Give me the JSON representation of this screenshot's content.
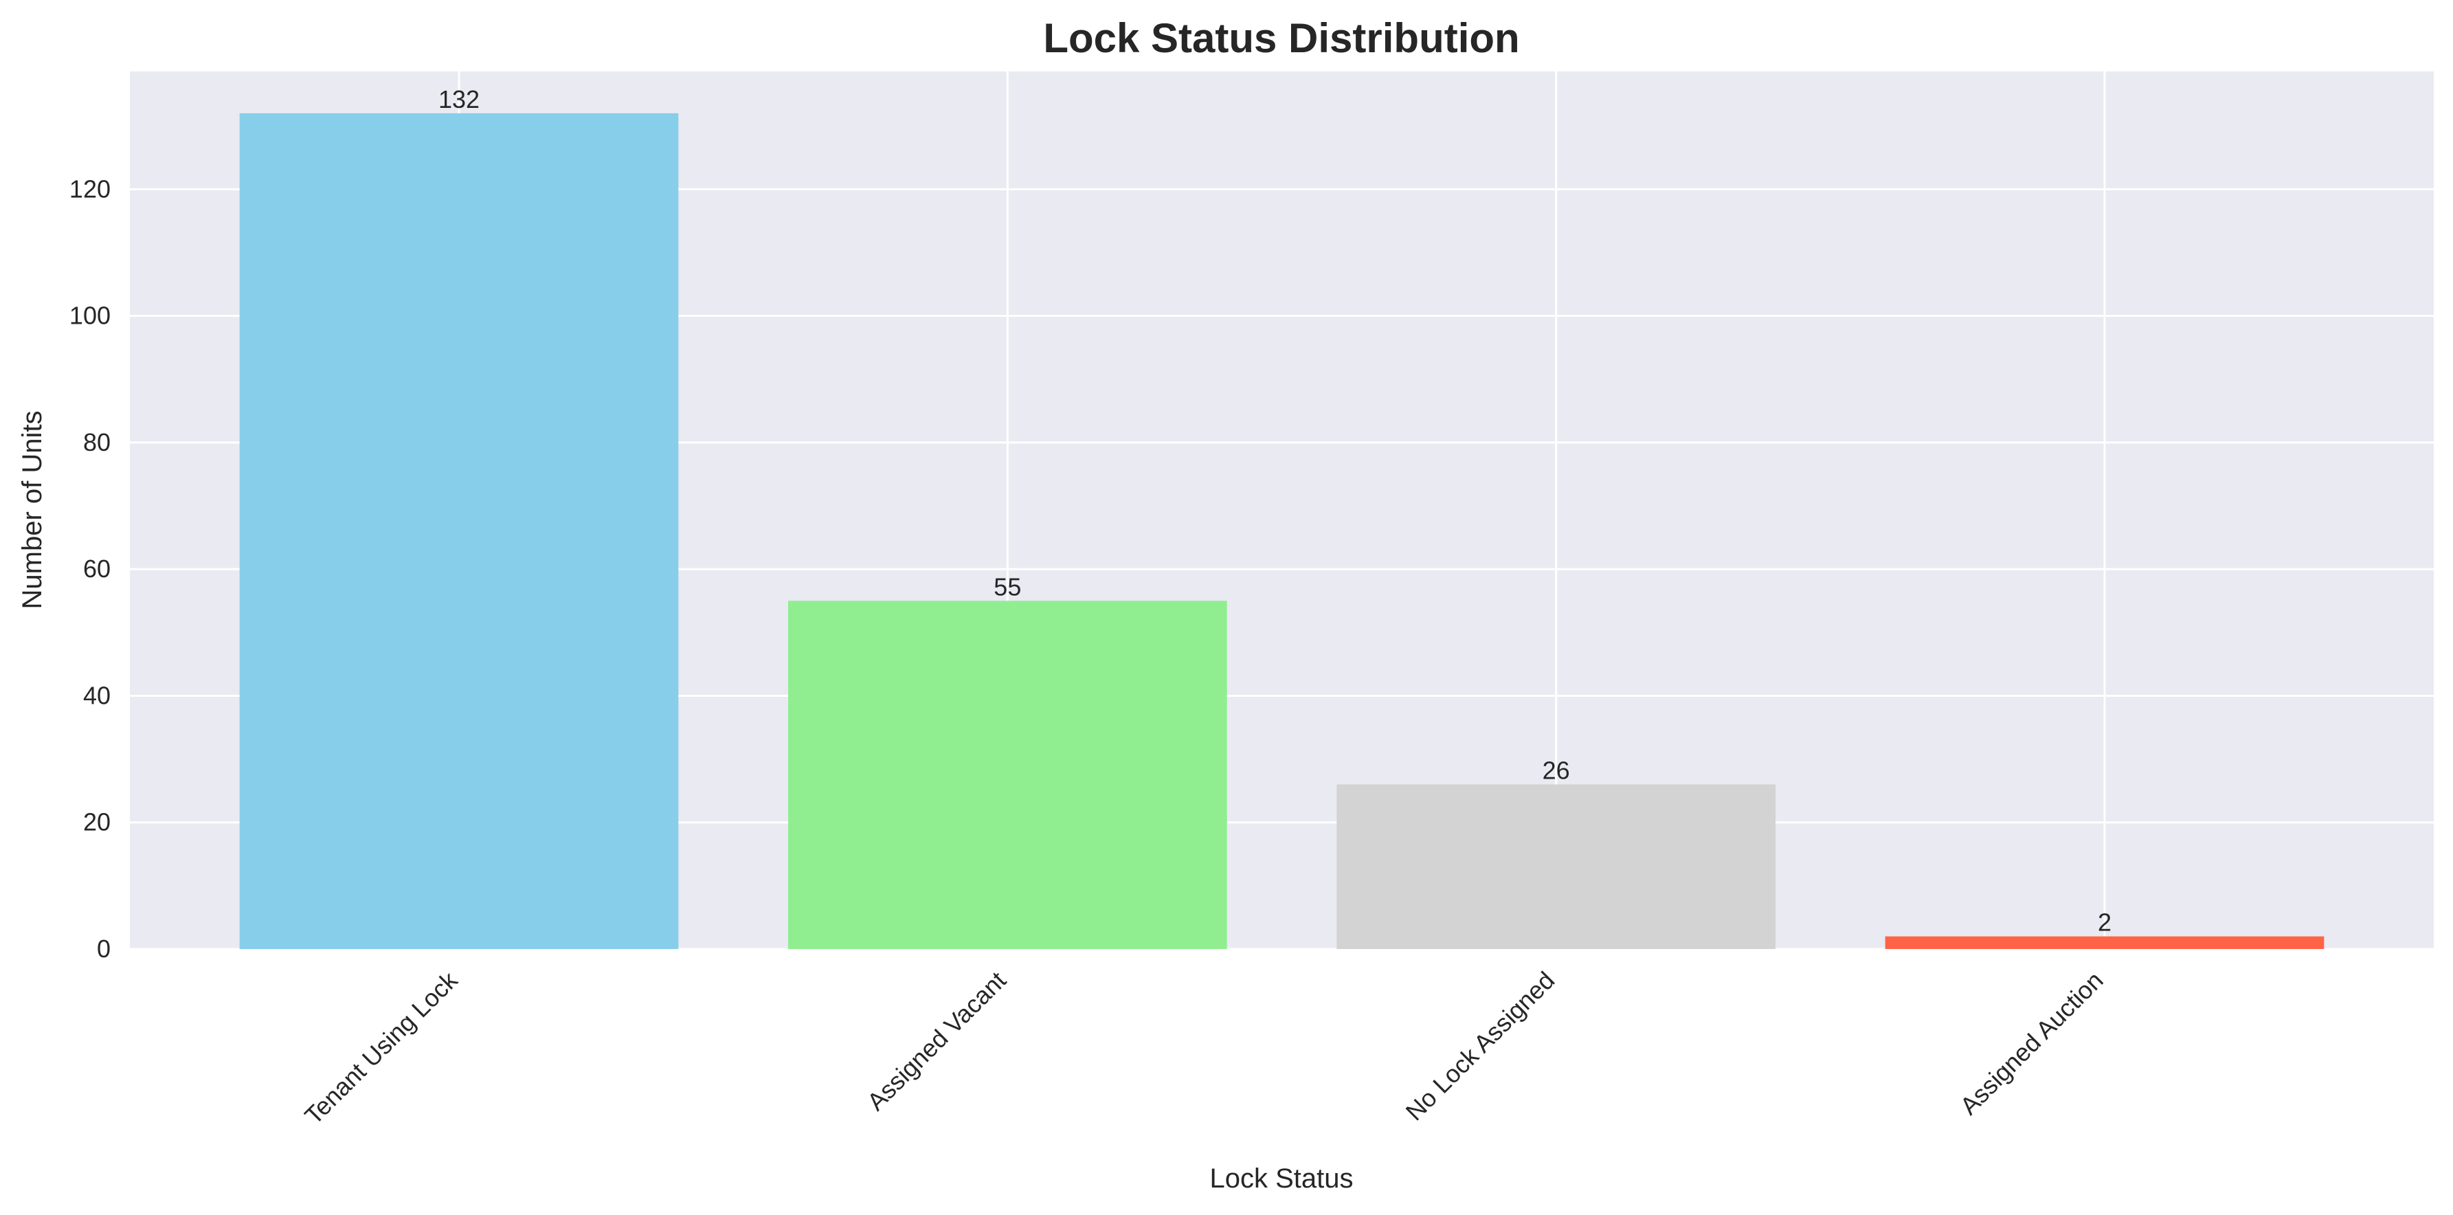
{
  "chart_data": {
    "type": "bar",
    "title": "Lock Status Distribution",
    "xlabel": "Lock Status",
    "ylabel": "Number of Units",
    "categories": [
      "Tenant Using Lock",
      "Assigned Vacant",
      "No Lock Assigned",
      "Assigned Auction"
    ],
    "values": [
      132,
      55,
      26,
      2
    ],
    "data_labels": [
      "132",
      "55",
      "26",
      "2"
    ],
    "colors": [
      "#87ceeb",
      "#90ee90",
      "#d3d3d3",
      "#ff6347"
    ],
    "ylim": [
      0,
      138.6
    ],
    "yticks": [
      0,
      20,
      40,
      60,
      80,
      100,
      120
    ],
    "grid": true,
    "background": "#eaeaf2"
  }
}
